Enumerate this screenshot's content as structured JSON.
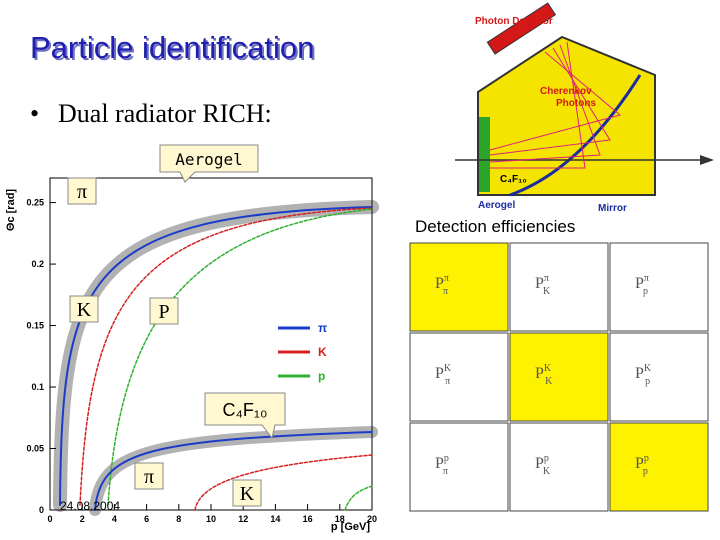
{
  "title": "Particle identification",
  "bullet": "Dual radiator RICH:",
  "plot": {
    "y_label": "Θc [rad]",
    "x_label": "p [GeV]",
    "xlim": [
      0,
      20
    ],
    "ylim": [
      0,
      0.27
    ],
    "xticks": [
      0,
      2,
      4,
      6,
      8,
      10,
      12,
      14,
      16,
      18,
      20
    ],
    "yticks": [
      0,
      0.05,
      0.1,
      0.15,
      0.2,
      0.25
    ],
    "legend": [
      {
        "name": "π",
        "color": "#1a3cc8"
      },
      {
        "name": "K",
        "color": "#d42020"
      },
      {
        "name": "p",
        "color": "#30b030"
      }
    ],
    "date": "24.08.2004"
  },
  "callouts": {
    "aerogel": "Aerogel",
    "c4f10": "C₄F₁₀"
  },
  "particle_boxes": [
    "π",
    "K",
    "P",
    "π",
    "K"
  ],
  "diagram": {
    "photon_detector": "Photon Detector",
    "cherenkov_photons": [
      "Cherenkov",
      "Photons"
    ],
    "mirror": "Mirror",
    "aerogel": "Aerogel",
    "c4f10": "C₄F₁₀"
  },
  "efficiencies": {
    "title": "Detection efficiencies",
    "panels": [
      {
        "label": "P",
        "sup": "π",
        "sub": "π"
      },
      {
        "label": "P",
        "sup": "π",
        "sub": "K"
      },
      {
        "label": "P",
        "sup": "π",
        "sub": "p"
      },
      {
        "label": "P",
        "sup": "K",
        "sub": "π"
      },
      {
        "label": "P",
        "sup": "K",
        "sub": "K"
      },
      {
        "label": "P",
        "sup": "K",
        "sub": "p"
      },
      {
        "label": "P",
        "sup": "p",
        "sub": "π"
      },
      {
        "label": "P",
        "sup": "p",
        "sub": "K"
      },
      {
        "label": "P",
        "sup": "p",
        "sub": "p"
      }
    ]
  }
}
